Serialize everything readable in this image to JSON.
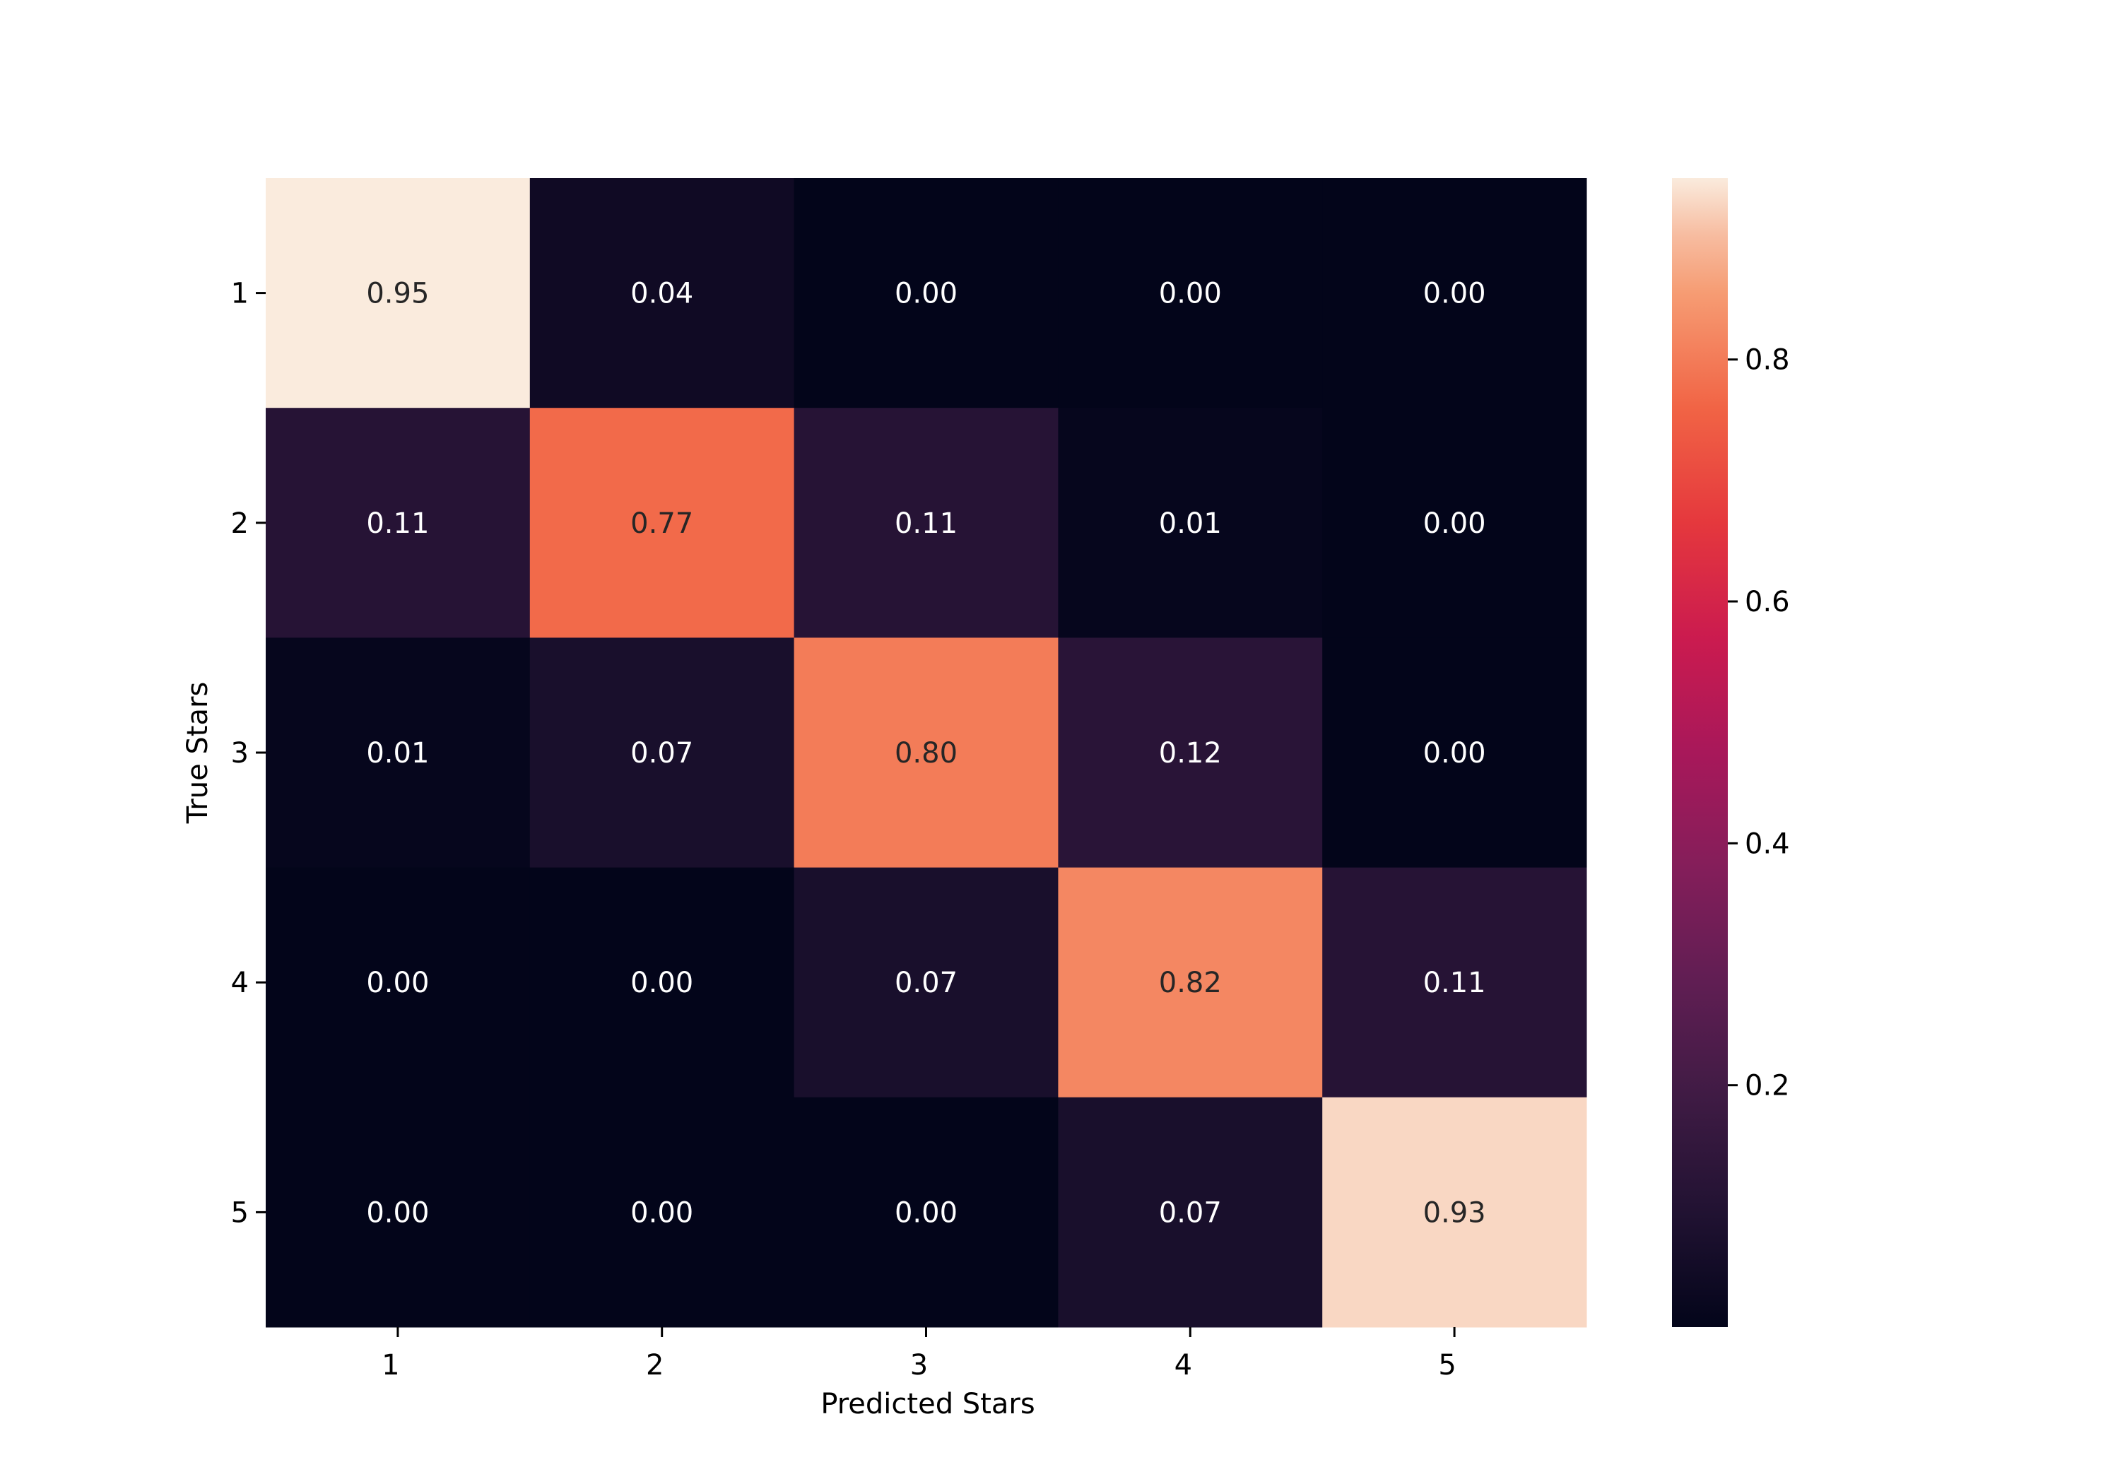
{
  "chart_data": {
    "type": "heatmap",
    "title": "",
    "xlabel": "Predicted Stars",
    "ylabel": "True Stars",
    "x_categories": [
      "1",
      "2",
      "3",
      "4",
      "5"
    ],
    "y_categories": [
      "1",
      "2",
      "3",
      "4",
      "5"
    ],
    "values": [
      [
        0.95,
        0.04,
        0.0,
        0.0,
        0.0
      ],
      [
        0.11,
        0.77,
        0.11,
        0.01,
        0.0
      ],
      [
        0.01,
        0.07,
        0.8,
        0.12,
        0.0
      ],
      [
        0.0,
        0.0,
        0.07,
        0.82,
        0.11
      ],
      [
        0.0,
        0.0,
        0.0,
        0.07,
        0.93
      ]
    ],
    "colormap": "rocket",
    "colorbar": {
      "vmin": 0.0,
      "vmax": 0.95,
      "ticks": [
        0.2,
        0.4,
        0.6,
        0.8
      ],
      "tick_labels": [
        "0.2",
        "0.4",
        "0.6",
        "0.8"
      ]
    },
    "annotation_format": "0.00",
    "grid": false
  }
}
